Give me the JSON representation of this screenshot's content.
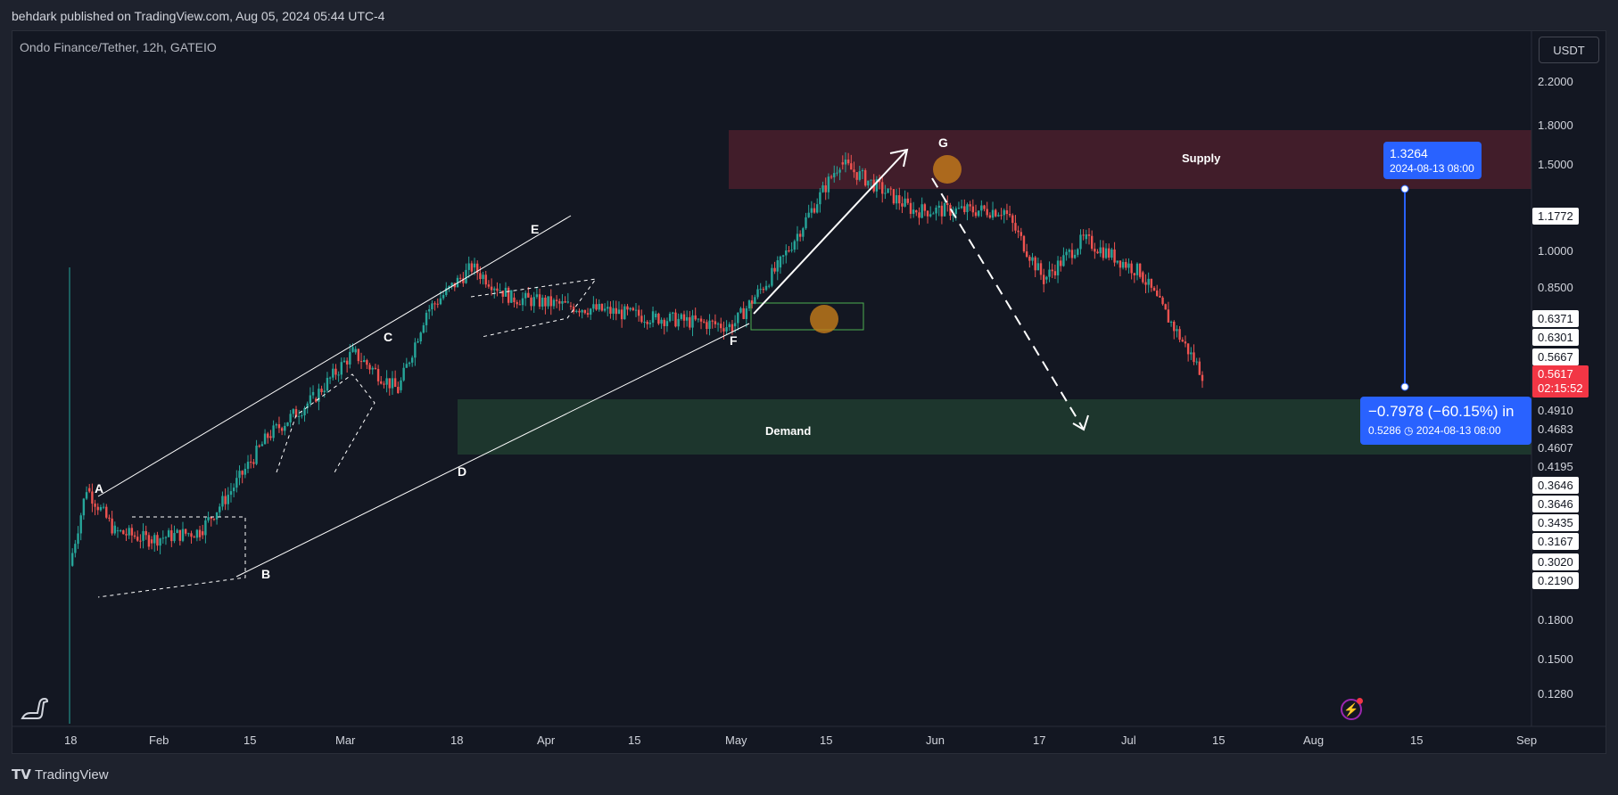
{
  "header": {
    "published": "behdark published on TradingView.com, Aug 05, 2024 05:44 UTC-4"
  },
  "chart_data": {
    "type": "candlestick",
    "symbol_line": "Ondo Finance/Tether, 12h, GATEIO",
    "currency": "USDT",
    "price_scale": "log",
    "y_ticks": [
      "2.2000",
      "1.8000",
      "1.5000",
      "1.0000",
      "0.8500",
      "0.1800",
      "0.1500",
      "0.1280"
    ],
    "x_ticks": [
      "18",
      "Feb",
      "15",
      "Mar",
      "18",
      "Apr",
      "15",
      "May",
      "15",
      "Jun",
      "17",
      "Jul",
      "15",
      "Aug",
      "15",
      "Sep"
    ],
    "axis_labels": [
      {
        "value": "1.1772",
        "style": "white"
      },
      {
        "value": "0.6371",
        "style": "white"
      },
      {
        "value": "0.6301",
        "style": "white"
      },
      {
        "value": "0.5667",
        "style": "white"
      },
      {
        "value": "0.4910",
        "style": "plain"
      },
      {
        "value": "0.4683",
        "style": "plain"
      },
      {
        "value": "0.4607",
        "style": "plain"
      },
      {
        "value": "0.4195",
        "style": "plain"
      },
      {
        "value": "0.3646",
        "style": "white"
      },
      {
        "value": "0.3646",
        "style": "white"
      },
      {
        "value": "0.3435",
        "style": "white"
      },
      {
        "value": "0.3167",
        "style": "white"
      },
      {
        "value": "0.3020",
        "style": "white"
      },
      {
        "value": "0.2190",
        "style": "white"
      }
    ],
    "last_price": {
      "value": "0.5617",
      "countdown": "02:15:52"
    },
    "series_approx_close": [
      {
        "date": "2024-01-18",
        "close": 0.23
      },
      {
        "date": "2024-01-21",
        "close": 0.33
      },
      {
        "date": "2024-01-26",
        "close": 0.27
      },
      {
        "date": "2024-02-01",
        "close": 0.26
      },
      {
        "date": "2024-02-10",
        "close": 0.27
      },
      {
        "date": "2024-02-15",
        "close": 0.32
      },
      {
        "date": "2024-02-22",
        "close": 0.42
      },
      {
        "date": "2024-03-01",
        "close": 0.5
      },
      {
        "date": "2024-03-08",
        "close": 0.62
      },
      {
        "date": "2024-03-16",
        "close": 0.52
      },
      {
        "date": "2024-03-21",
        "close": 0.75
      },
      {
        "date": "2024-03-29",
        "close": 0.92
      },
      {
        "date": "2024-04-05",
        "close": 0.8
      },
      {
        "date": "2024-04-15",
        "close": 0.77
      },
      {
        "date": "2024-04-30",
        "close": 0.73
      },
      {
        "date": "2024-05-14",
        "close": 0.7
      },
      {
        "date": "2024-05-22",
        "close": 0.92
      },
      {
        "date": "2024-06-02",
        "close": 1.5
      },
      {
        "date": "2024-06-15",
        "close": 1.2
      },
      {
        "date": "2024-07-01",
        "close": 1.2
      },
      {
        "date": "2024-07-08",
        "close": 0.87
      },
      {
        "date": "2024-07-15",
        "close": 1.05
      },
      {
        "date": "2024-07-25",
        "close": 0.9
      },
      {
        "date": "2024-08-05",
        "close": 0.5617
      }
    ],
    "annotations": {
      "points": [
        "A",
        "B",
        "C",
        "D",
        "E",
        "F",
        "G"
      ],
      "supply_label": "Supply",
      "demand_label": "Demand"
    },
    "measure": {
      "change": "−0.7978 (−60.15%) in",
      "target_price": "0.5286",
      "target_time": "2024-08-13  08:00",
      "start_price": "1.3264",
      "start_time": "2024-08-13 08:00"
    }
  },
  "footer": {
    "brand": "TradingView"
  },
  "icons": {
    "bottom_left": "dino-icon",
    "bottom_right": "lightning-icon"
  }
}
